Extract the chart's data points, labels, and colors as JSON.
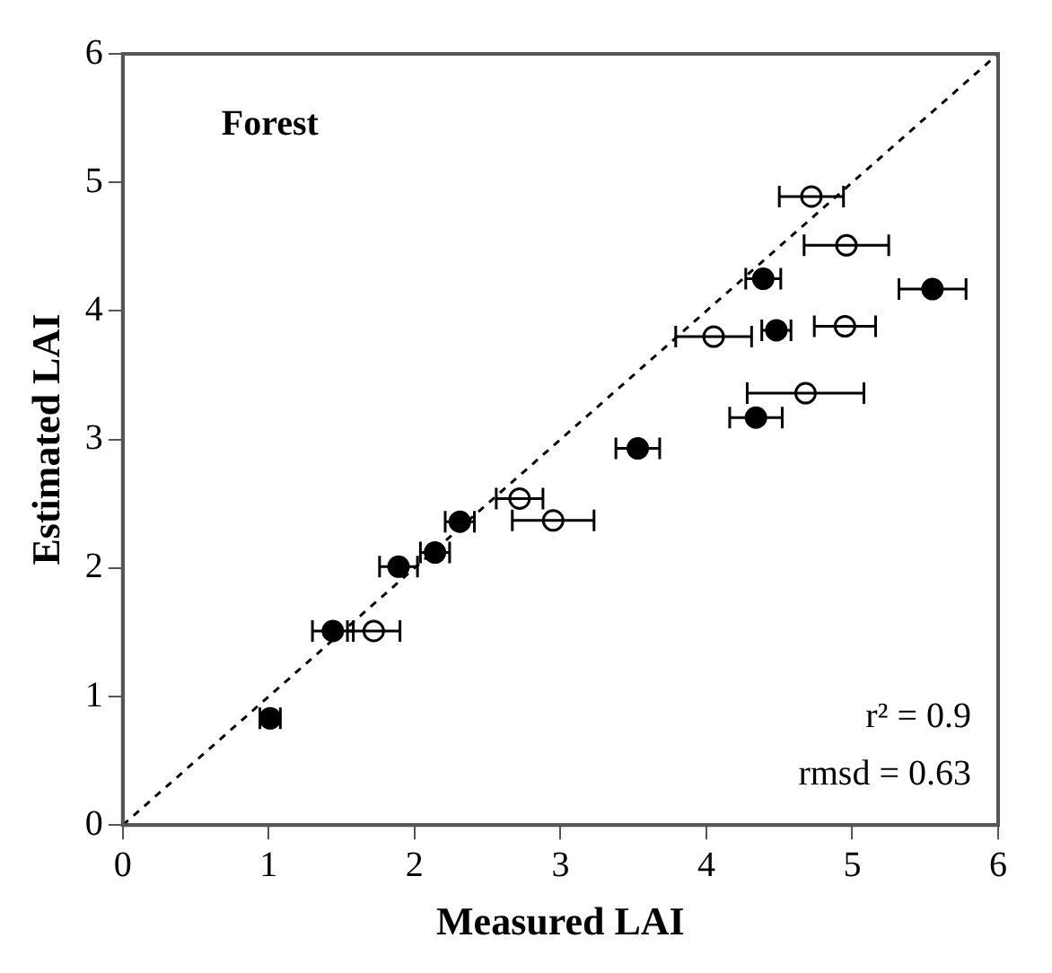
{
  "chart_data": {
    "type": "scatter",
    "xlabel": "Measured LAI",
    "ylabel": "Estimated LAI",
    "xlim": [
      0,
      6
    ],
    "ylim": [
      0,
      6
    ],
    "xticks": [
      0,
      1,
      2,
      3,
      4,
      5,
      6
    ],
    "yticks": [
      0,
      1,
      2,
      3,
      4,
      5,
      6
    ],
    "grid": false,
    "legend": false,
    "marker": "circle",
    "annotations": [
      "Forest",
      "r² = 0.9",
      "rmsd = 0.63"
    ],
    "series": [
      {
        "type": "line",
        "color": "#000000",
        "line_style": "dashed",
        "marker": "none",
        "x": [
          0,
          6
        ],
        "values": [
          0,
          6
        ]
      },
      {
        "color": "#000000",
        "x": [
          1.01,
          1.44,
          1.89,
          2.14,
          2.31,
          3.53,
          4.39,
          4.48,
          5.55,
          4.34
        ],
        "values": [
          0.83,
          1.51,
          2.01,
          2.12,
          2.36,
          2.93,
          4.25,
          3.85,
          4.17,
          3.17
        ],
        "xerrors": [
          0.07,
          0.14,
          0.13,
          0.1,
          0.1,
          0.15,
          0.12,
          0.1,
          0.23,
          0.18
        ]
      },
      {
        "color": "#000000",
        "marker": "circle",
        "x": [
          4.72,
          4.96,
          4.05,
          4.95,
          4.68,
          1.72,
          2.72,
          2.95
        ],
        "values": [
          4.89,
          4.51,
          3.8,
          3.88,
          3.36,
          1.51,
          2.54,
          2.37
        ],
        "xerrors": [
          0.22,
          0.29,
          0.26,
          0.21,
          0.4,
          0.18,
          0.16,
          0.28
        ]
      }
    ]
  }
}
